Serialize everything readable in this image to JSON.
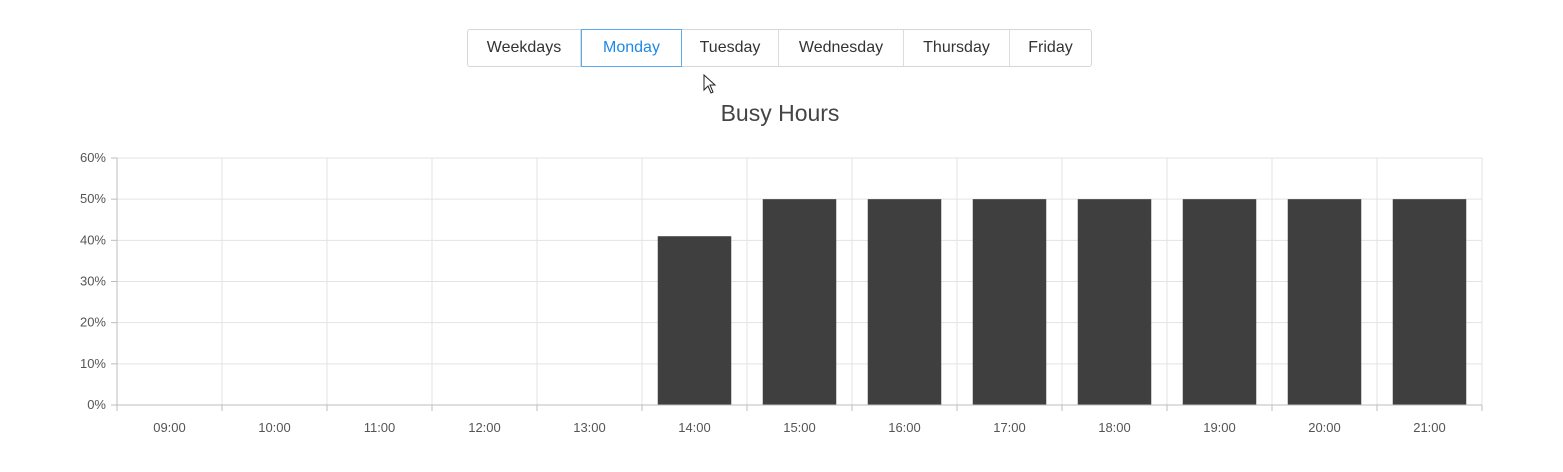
{
  "tabs": [
    {
      "label": "Weekdays",
      "active": false
    },
    {
      "label": "Monday",
      "active": true
    },
    {
      "label": "Tuesday",
      "active": false
    },
    {
      "label": "Wednesday",
      "active": false
    },
    {
      "label": "Thursday",
      "active": false
    },
    {
      "label": "Friday",
      "active": false
    }
  ],
  "colors": {
    "bar": "#3f3f3f",
    "grid": "#e3e3e3",
    "axis": "#bdbdbd",
    "active_tab": "#1e88e5"
  },
  "chart_data": {
    "type": "bar",
    "title": "Busy Hours",
    "categories": [
      "09:00",
      "10:00",
      "11:00",
      "12:00",
      "13:00",
      "14:00",
      "15:00",
      "16:00",
      "17:00",
      "18:00",
      "19:00",
      "20:00",
      "21:00"
    ],
    "values": [
      0,
      0,
      0,
      0,
      0,
      41,
      50,
      50,
      50,
      50,
      50,
      50,
      50
    ],
    "ylim": [
      0,
      60
    ],
    "yticks": [
      "0%",
      "10%",
      "20%",
      "30%",
      "40%",
      "50%",
      "60%"
    ],
    "y_unit": "%",
    "grid": true,
    "legend": "none"
  }
}
